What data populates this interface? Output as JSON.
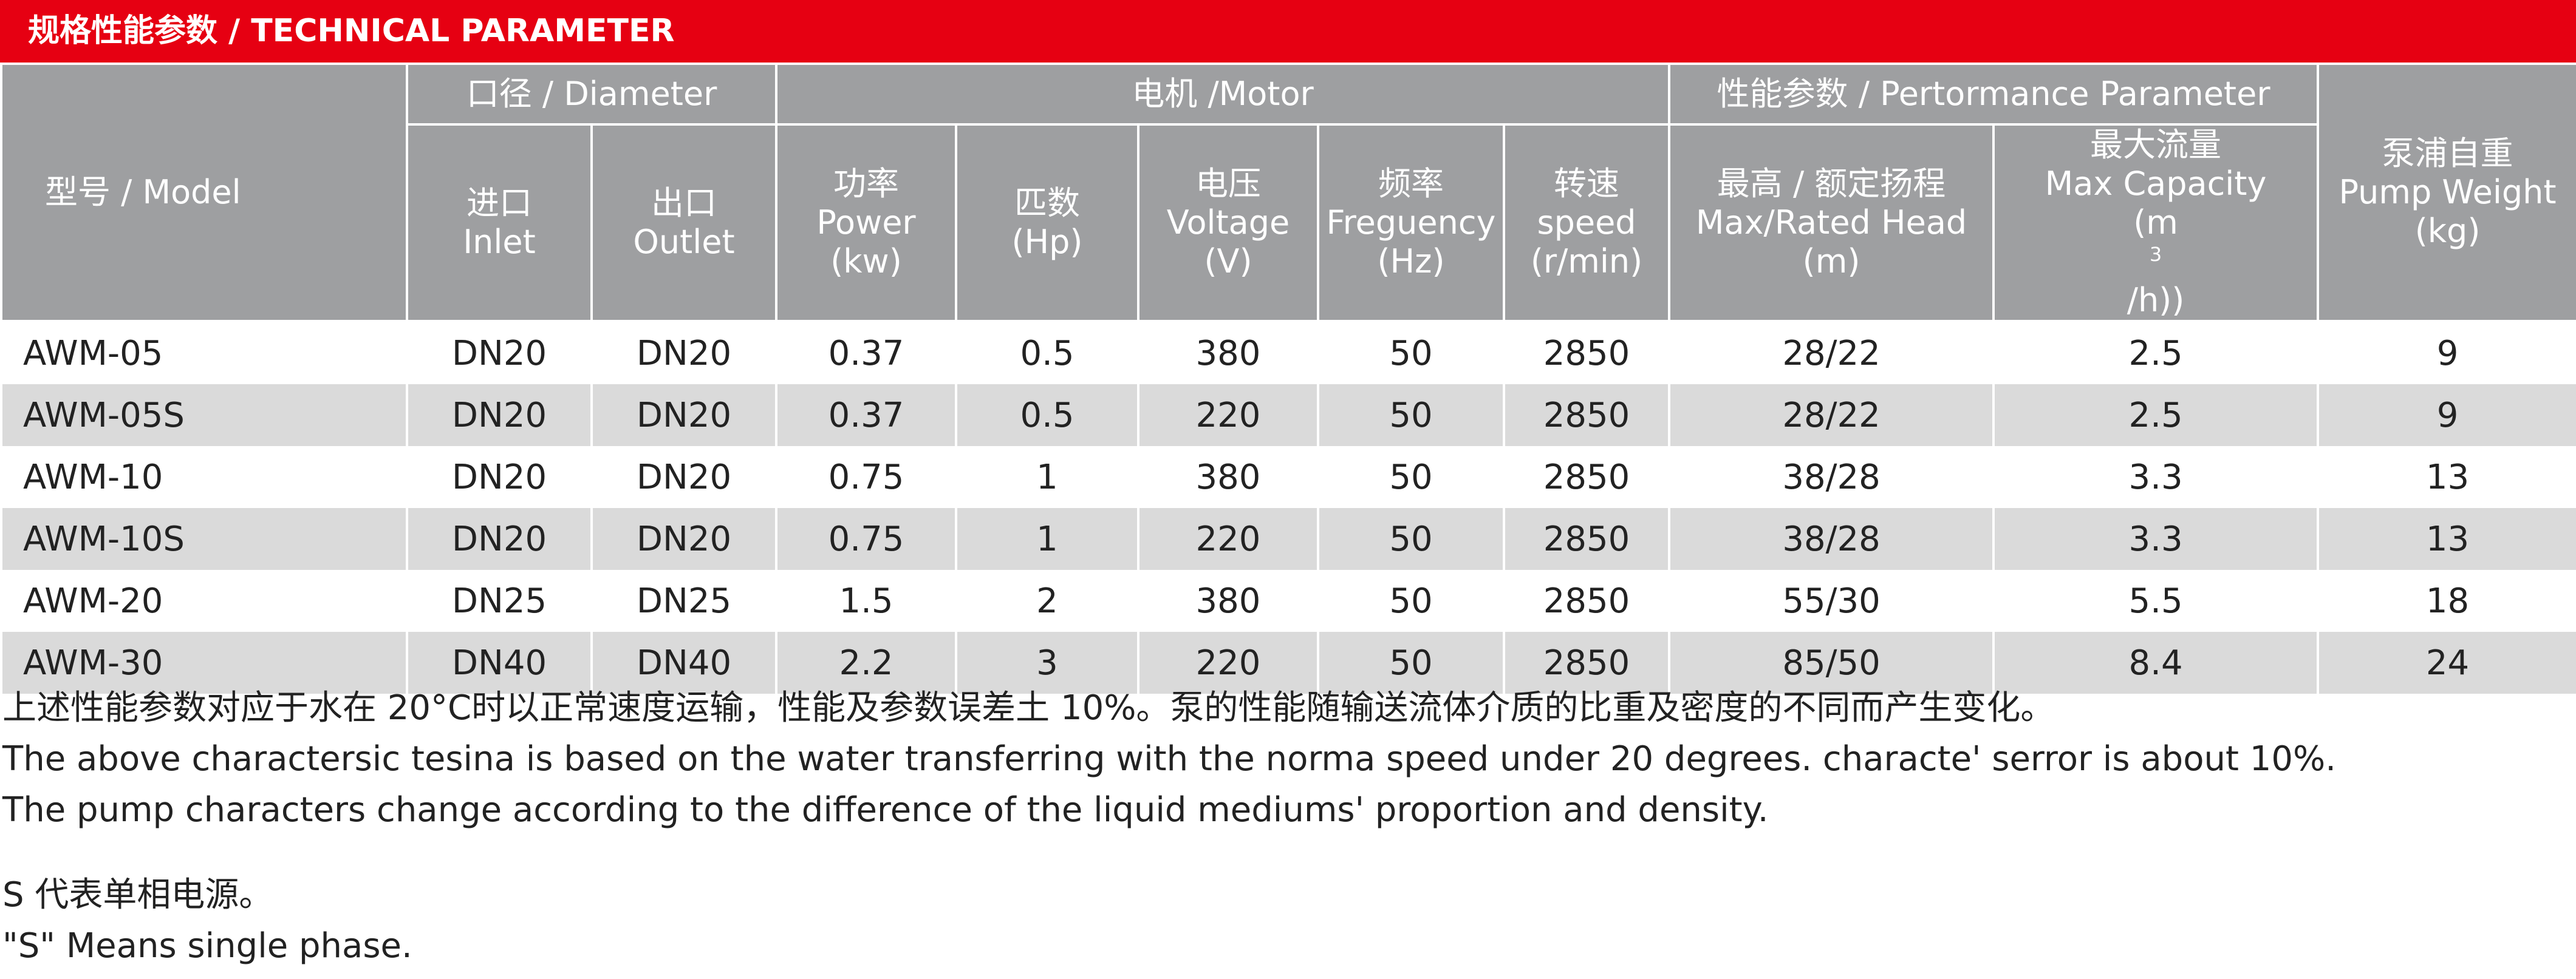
{
  "banner": {
    "title": "规格性能参数 / TECHNICAL PARAMETER"
  },
  "colors": {
    "brand_red": "#e60012",
    "header_gray": "#9e9fa1",
    "row_alt": "#dadada"
  },
  "header": {
    "model": "型号 / Model",
    "diameter": "口径 / Diameter",
    "motor": "电机 /Motor",
    "performance": "性能参数 / Pertormance Parameter",
    "weight": {
      "cn": "泵浦自重",
      "en": "Pump Weight",
      "unit": "(kg)"
    },
    "inlet": {
      "cn": "进口",
      "en": "Inlet"
    },
    "outlet": {
      "cn": "出口",
      "en": "Outlet"
    },
    "power": {
      "cn": "功率",
      "en": "Power",
      "unit": "(kw)"
    },
    "hp": {
      "cn": "匹数",
      "unit": "(Hp)"
    },
    "voltage": {
      "cn": "电压",
      "en": "Voltage",
      "unit": "(V)"
    },
    "frequency": {
      "cn": "频率",
      "en": "Freguency",
      "unit": "(Hz)"
    },
    "speed": {
      "cn": "转速",
      "en": "speed",
      "unit": "(r/min)"
    },
    "head": {
      "cn": "最高 / 额定扬程",
      "en": "Max/Rated Head",
      "unit": "(m)"
    },
    "capacity": {
      "cn": "最大流量",
      "en": "Max Capacity",
      "unit_pre": "(m",
      "unit_sup": "3",
      "unit_post": "/h))"
    }
  },
  "rows": [
    {
      "model": "AWM-05",
      "inlet": "DN20",
      "outlet": "DN20",
      "power": "0.37",
      "hp": "0.5",
      "voltage": "380",
      "freq": "50",
      "speed": "2850",
      "head": "28/22",
      "capacity": "2.5",
      "weight": "9"
    },
    {
      "model": "AWM-05S",
      "inlet": "DN20",
      "outlet": "DN20",
      "power": "0.37",
      "hp": "0.5",
      "voltage": "220",
      "freq": "50",
      "speed": "2850",
      "head": "28/22",
      "capacity": "2.5",
      "weight": "9"
    },
    {
      "model": "AWM-10",
      "inlet": "DN20",
      "outlet": "DN20",
      "power": "0.75",
      "hp": "1",
      "voltage": "380",
      "freq": "50",
      "speed": "2850",
      "head": "38/28",
      "capacity": "3.3",
      "weight": "13"
    },
    {
      "model": "AWM-10S",
      "inlet": "DN20",
      "outlet": "DN20",
      "power": "0.75",
      "hp": "1",
      "voltage": "220",
      "freq": "50",
      "speed": "2850",
      "head": "38/28",
      "capacity": "3.3",
      "weight": "13"
    },
    {
      "model": "AWM-20",
      "inlet": "DN25",
      "outlet": "DN25",
      "power": "1.5",
      "hp": "2",
      "voltage": "380",
      "freq": "50",
      "speed": "2850",
      "head": "55/30",
      "capacity": "5.5",
      "weight": "18"
    },
    {
      "model": "AWM-30",
      "inlet": "DN40",
      "outlet": "DN40",
      "power": "2.2",
      "hp": "3",
      "voltage": "220",
      "freq": "50",
      "speed": "2850",
      "head": "85/50",
      "capacity": "8.4",
      "weight": "24"
    }
  ],
  "notes": {
    "cn": "上述性能参数对应于水在 20°C时以正常速度运输，性能及参数误差土 10%。泵的性能随输送流体介质的比重及密度的不同而产生变化。",
    "en1": "The above charactersic tesina is based on the water transferring with the norma speed under 20 degrees. characte' serror is about 10%.",
    "en2": "The pump characters change according to the difference of the liquid mediums' proportion and density.",
    "s_cn": "S 代表单相电源。",
    "s_en": "\"S\" Means single phase."
  }
}
